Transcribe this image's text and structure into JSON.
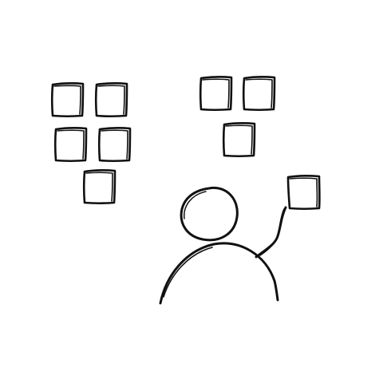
{
  "illustration": {
    "subject": "person-placing-sticky-note",
    "ink_color": "#111111",
    "background_color": "#ffffff",
    "left_cluster_note_count": 5,
    "right_cluster_note_count": 3,
    "held_note_count": 1
  }
}
